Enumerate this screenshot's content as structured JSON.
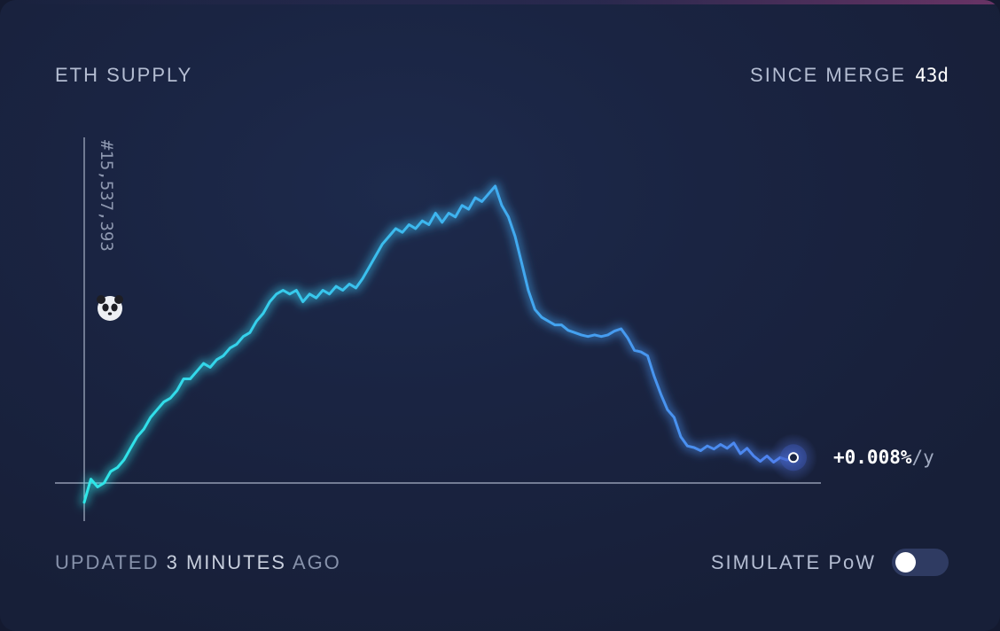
{
  "header": {
    "title": "ETH SUPPLY",
    "period_label": "SINCE MERGE",
    "period_value": "43d"
  },
  "footer": {
    "updated_prefix": "UPDATED",
    "updated_strong": "3 MINUTES",
    "updated_suffix": "AGO",
    "simulate_label": "SIMULATE PoW",
    "simulate_on": false
  },
  "colors": {
    "line_start": "#2ee8e8",
    "line_mid": "#3fb0f0",
    "line_end": "#4f80f0",
    "axis": "#aab4c8",
    "background": "#1a2442",
    "toggle_track": "#2f3b62"
  },
  "icons": {
    "merge_marker": "panda-icon",
    "end_marker": "pulse-dot-icon"
  },
  "chart_data": {
    "type": "line",
    "title": "ETH SUPPLY",
    "xlabel": "",
    "ylabel": "",
    "x_range_days": [
      0,
      43
    ],
    "y_baseline": 0,
    "y_range": [
      -0.3,
      4.5
    ],
    "grid": false,
    "legend": "none",
    "series": [
      {
        "values": [
          -0.25,
          0.05,
          -0.05,
          0.0,
          0.15,
          0.2,
          0.3,
          0.45,
          0.6,
          0.7,
          0.85,
          0.95,
          1.05,
          1.1,
          1.2,
          1.35,
          1.35,
          1.45,
          1.55,
          1.5,
          1.6,
          1.65,
          1.75,
          1.8,
          1.9,
          1.95,
          2.1,
          2.2,
          2.35,
          2.45,
          2.5,
          2.45,
          2.5,
          2.35,
          2.45,
          2.4,
          2.5,
          2.45,
          2.55,
          2.5,
          2.58,
          2.53,
          2.65,
          2.8,
          2.95,
          3.1,
          3.2,
          3.3,
          3.25,
          3.35,
          3.3,
          3.4,
          3.35,
          3.5,
          3.38,
          3.5,
          3.45,
          3.6,
          3.55,
          3.7,
          3.65,
          3.75,
          3.85,
          3.6,
          3.45,
          3.2,
          2.85,
          2.5,
          2.25,
          2.15,
          2.1,
          2.05,
          2.05,
          1.98,
          1.95,
          1.92,
          1.9,
          1.92,
          1.9,
          1.92,
          1.97,
          2.0,
          1.88,
          1.72,
          1.7,
          1.65,
          1.38,
          1.15,
          0.95,
          0.85,
          0.6,
          0.48,
          0.46,
          0.42,
          0.48,
          0.44,
          0.5,
          0.45,
          0.52,
          0.38,
          0.45,
          0.35,
          0.28,
          0.35,
          0.27,
          0.33,
          0.3,
          0.33
        ]
      }
    ],
    "annotations": {
      "merge_block": "#15,537,393",
      "current_rate_value": "+0.008%",
      "current_rate_unit": "/y"
    }
  }
}
